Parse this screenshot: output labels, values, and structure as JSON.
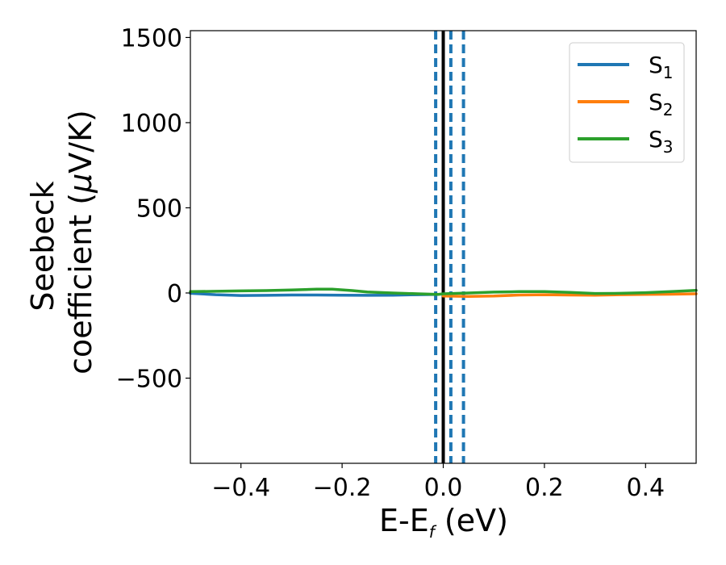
{
  "chart_data": {
    "type": "line",
    "xlabel": {
      "main": "E-E",
      "sub": "f",
      "tail": " (eV)"
    },
    "ylabel": {
      "line1": "Seebeck",
      "line2_pre": "coefficient  (",
      "mu": "μ",
      "line2_post": "V/K)"
    },
    "xlim": [
      -0.5,
      0.5
    ],
    "ylim": [
      -1000,
      1540
    ],
    "xticks": [
      -0.4,
      -0.2,
      0.0,
      0.2,
      0.4
    ],
    "xtick_labels": [
      "−0.4",
      "−0.2",
      "0.0",
      "0.2",
      "0.4"
    ],
    "yticks": [
      -500,
      0,
      500,
      1000,
      1500
    ],
    "ytick_labels": [
      "−500",
      "0",
      "500",
      "1000",
      "1500"
    ],
    "legend_position": "top-right",
    "series": [
      {
        "name": "S",
        "sub": "1",
        "color": "#1f77b4",
        "x": [
          -0.5,
          -0.45,
          -0.4,
          -0.35,
          -0.3,
          -0.25,
          -0.2,
          -0.15,
          -0.1,
          -0.05,
          -0.01
        ],
        "y": [
          -2,
          -10,
          -15,
          -14,
          -12,
          -12,
          -13,
          -14,
          -13,
          -10,
          -8
        ]
      },
      {
        "name": "S",
        "sub": "2",
        "color": "#ff7f0e",
        "x": [
          0.0,
          0.05,
          0.1,
          0.15,
          0.2,
          0.25,
          0.3,
          0.35,
          0.4,
          0.45,
          0.5
        ],
        "y": [
          -18,
          -20,
          -18,
          -12,
          -10,
          -12,
          -13,
          -10,
          -8,
          -7,
          -5
        ]
      },
      {
        "name": "S",
        "sub": "3",
        "color": "#2ca02c",
        "x": [
          -0.5,
          -0.45,
          -0.4,
          -0.35,
          -0.3,
          -0.25,
          -0.22,
          -0.18,
          -0.15,
          -0.1,
          -0.05,
          -0.01,
          0.0,
          0.05,
          0.1,
          0.15,
          0.2,
          0.25,
          0.3,
          0.35,
          0.4,
          0.45,
          0.5
        ],
        "y": [
          8,
          10,
          12,
          14,
          18,
          22,
          22,
          14,
          6,
          0,
          -5,
          -8,
          -5,
          0,
          5,
          8,
          8,
          3,
          -3,
          -2,
          2,
          8,
          15
        ]
      }
    ],
    "vlines": [
      {
        "x": -0.015,
        "style": "dashed",
        "color": "#1f77b4"
      },
      {
        "x": 0.0,
        "style": "solid",
        "color": "#000000"
      },
      {
        "x": 0.015,
        "style": "dashed",
        "color": "#1f77b4"
      },
      {
        "x": 0.04,
        "style": "dashed",
        "color": "#1f77b4"
      }
    ]
  }
}
